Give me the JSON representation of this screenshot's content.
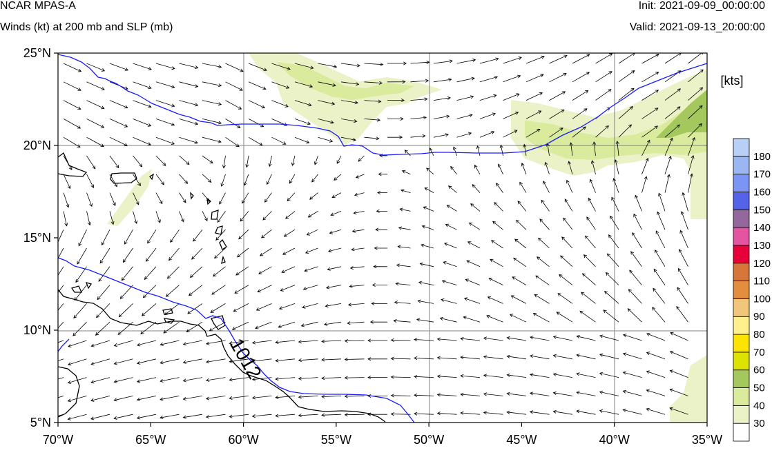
{
  "header": {
    "title": "NCAR MPAS-A",
    "subtitle": "Winds (kt) at 200 mb and SLP (mb)",
    "init": "Init: 2021-09-09_00:00:00",
    "valid": "Valid: 2021-09-13_20:00:00"
  },
  "map": {
    "lon_range": [
      -70,
      -35
    ],
    "lat_range": [
      5,
      25
    ],
    "lon_ticks": [
      -70,
      -65,
      -60,
      -55,
      -50,
      -45,
      -40,
      -35
    ],
    "lat_ticks": [
      5,
      10,
      15,
      20,
      25
    ],
    "lon_tick_labels": [
      "70°W",
      "65°W",
      "60°W",
      "55°W",
      "50°W",
      "45°W",
      "40°W",
      "35°W"
    ],
    "lat_tick_labels": [
      "5°N",
      "10°N",
      "15°N",
      "20°N",
      "25°N"
    ],
    "contour_label": "1012",
    "colors": {
      "isobar": "#1a1aff",
      "coast": "#000000",
      "grid": "#7f7f7f"
    }
  },
  "colorbar": {
    "unit_label": "[kts]",
    "levels": [
      "30",
      "40",
      "50",
      "60",
      "70",
      "80",
      "90",
      "100",
      "110",
      "120",
      "130",
      "140",
      "150",
      "160",
      "170",
      "180"
    ],
    "colors": [
      "#ffffff",
      "#ebf2c8",
      "#dbeb9e",
      "#a4c75e",
      "#dde300",
      "#fde400",
      "#fef08d",
      "#f2c67a",
      "#e38d3f",
      "#d7763b",
      "#e8003a",
      "#e455a1",
      "#94679d",
      "#5463e8",
      "#7c95f4",
      "#9ab6f3",
      "#b8cff6"
    ]
  }
}
